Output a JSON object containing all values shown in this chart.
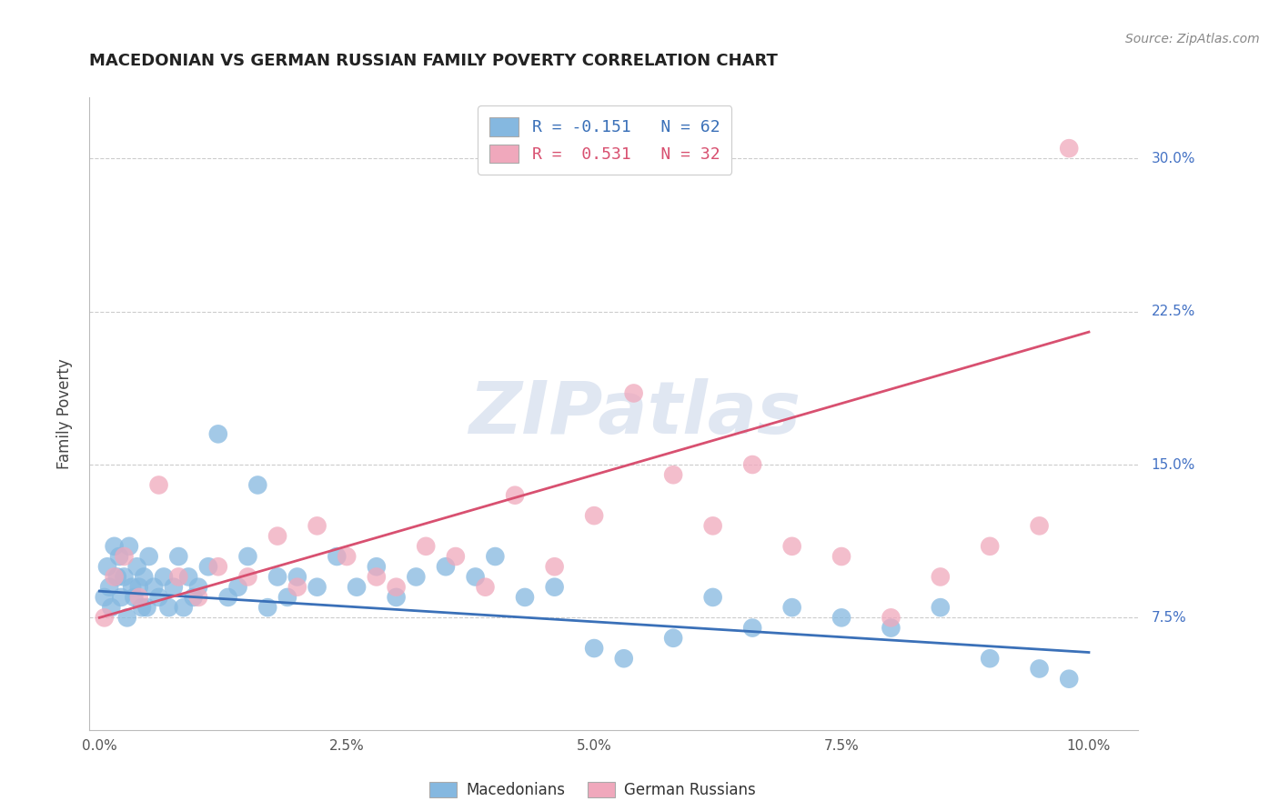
{
  "title": "MACEDONIAN VS GERMAN RUSSIAN FAMILY POVERTY CORRELATION CHART",
  "source": "Source: ZipAtlas.com",
  "ylabel": "Family Poverty",
  "xlabel_vals": [
    0.0,
    2.5,
    5.0,
    7.5,
    10.0
  ],
  "ylabel_vals": [
    7.5,
    15.0,
    22.5,
    30.0
  ],
  "xlim": [
    -0.1,
    10.5
  ],
  "ylim": [
    2.0,
    33.0
  ],
  "blue_color": "#85b8e0",
  "pink_color": "#f0a8bc",
  "blue_line_color": "#3a70b8",
  "pink_line_color": "#d85070",
  "watermark_color": "#c8d4e8",
  "legend_blue_label": "R = -0.151   N = 62",
  "legend_pink_label": "R =  0.531   N = 32",
  "macedonians_label": "Macedonians",
  "german_russians_label": "German Russians",
  "blue_trend_x": [
    0.0,
    10.0
  ],
  "blue_trend_y": [
    8.8,
    5.8
  ],
  "pink_trend_x": [
    0.0,
    10.0
  ],
  "pink_trend_y": [
    7.5,
    21.5
  ],
  "macedonian_x": [
    0.05,
    0.08,
    0.1,
    0.12,
    0.15,
    0.18,
    0.2,
    0.22,
    0.25,
    0.28,
    0.3,
    0.33,
    0.35,
    0.38,
    0.4,
    0.43,
    0.45,
    0.48,
    0.5,
    0.55,
    0.6,
    0.65,
    0.7,
    0.75,
    0.8,
    0.85,
    0.9,
    0.95,
    1.0,
    1.1,
    1.2,
    1.3,
    1.4,
    1.5,
    1.6,
    1.7,
    1.8,
    1.9,
    2.0,
    2.2,
    2.4,
    2.6,
    2.8,
    3.0,
    3.2,
    3.5,
    3.8,
    4.0,
    4.3,
    4.6,
    5.0,
    5.3,
    5.8,
    6.2,
    6.6,
    7.0,
    7.5,
    8.0,
    8.5,
    9.0,
    9.5,
    9.8
  ],
  "macedonian_y": [
    8.5,
    10.0,
    9.0,
    8.0,
    11.0,
    9.5,
    10.5,
    8.5,
    9.5,
    7.5,
    11.0,
    9.0,
    8.5,
    10.0,
    9.0,
    8.0,
    9.5,
    8.0,
    10.5,
    9.0,
    8.5,
    9.5,
    8.0,
    9.0,
    10.5,
    8.0,
    9.5,
    8.5,
    9.0,
    10.0,
    16.5,
    8.5,
    9.0,
    10.5,
    14.0,
    8.0,
    9.5,
    8.5,
    9.5,
    9.0,
    10.5,
    9.0,
    10.0,
    8.5,
    9.5,
    10.0,
    9.5,
    10.5,
    8.5,
    9.0,
    6.0,
    5.5,
    6.5,
    8.5,
    7.0,
    8.0,
    7.5,
    7.0,
    8.0,
    5.5,
    5.0,
    4.5
  ],
  "german_russian_x": [
    0.05,
    0.15,
    0.25,
    0.4,
    0.6,
    0.8,
    1.0,
    1.2,
    1.5,
    1.8,
    2.0,
    2.2,
    2.5,
    2.8,
    3.0,
    3.3,
    3.6,
    3.9,
    4.2,
    4.6,
    5.0,
    5.4,
    5.8,
    6.2,
    6.6,
    7.0,
    7.5,
    8.0,
    8.5,
    9.0,
    9.5,
    9.8
  ],
  "german_russian_y": [
    7.5,
    9.5,
    10.5,
    8.5,
    14.0,
    9.5,
    8.5,
    10.0,
    9.5,
    11.5,
    9.0,
    12.0,
    10.5,
    9.5,
    9.0,
    11.0,
    10.5,
    9.0,
    13.5,
    10.0,
    12.5,
    18.5,
    14.5,
    12.0,
    15.0,
    11.0,
    10.5,
    7.5,
    9.5,
    11.0,
    12.0,
    30.5
  ]
}
